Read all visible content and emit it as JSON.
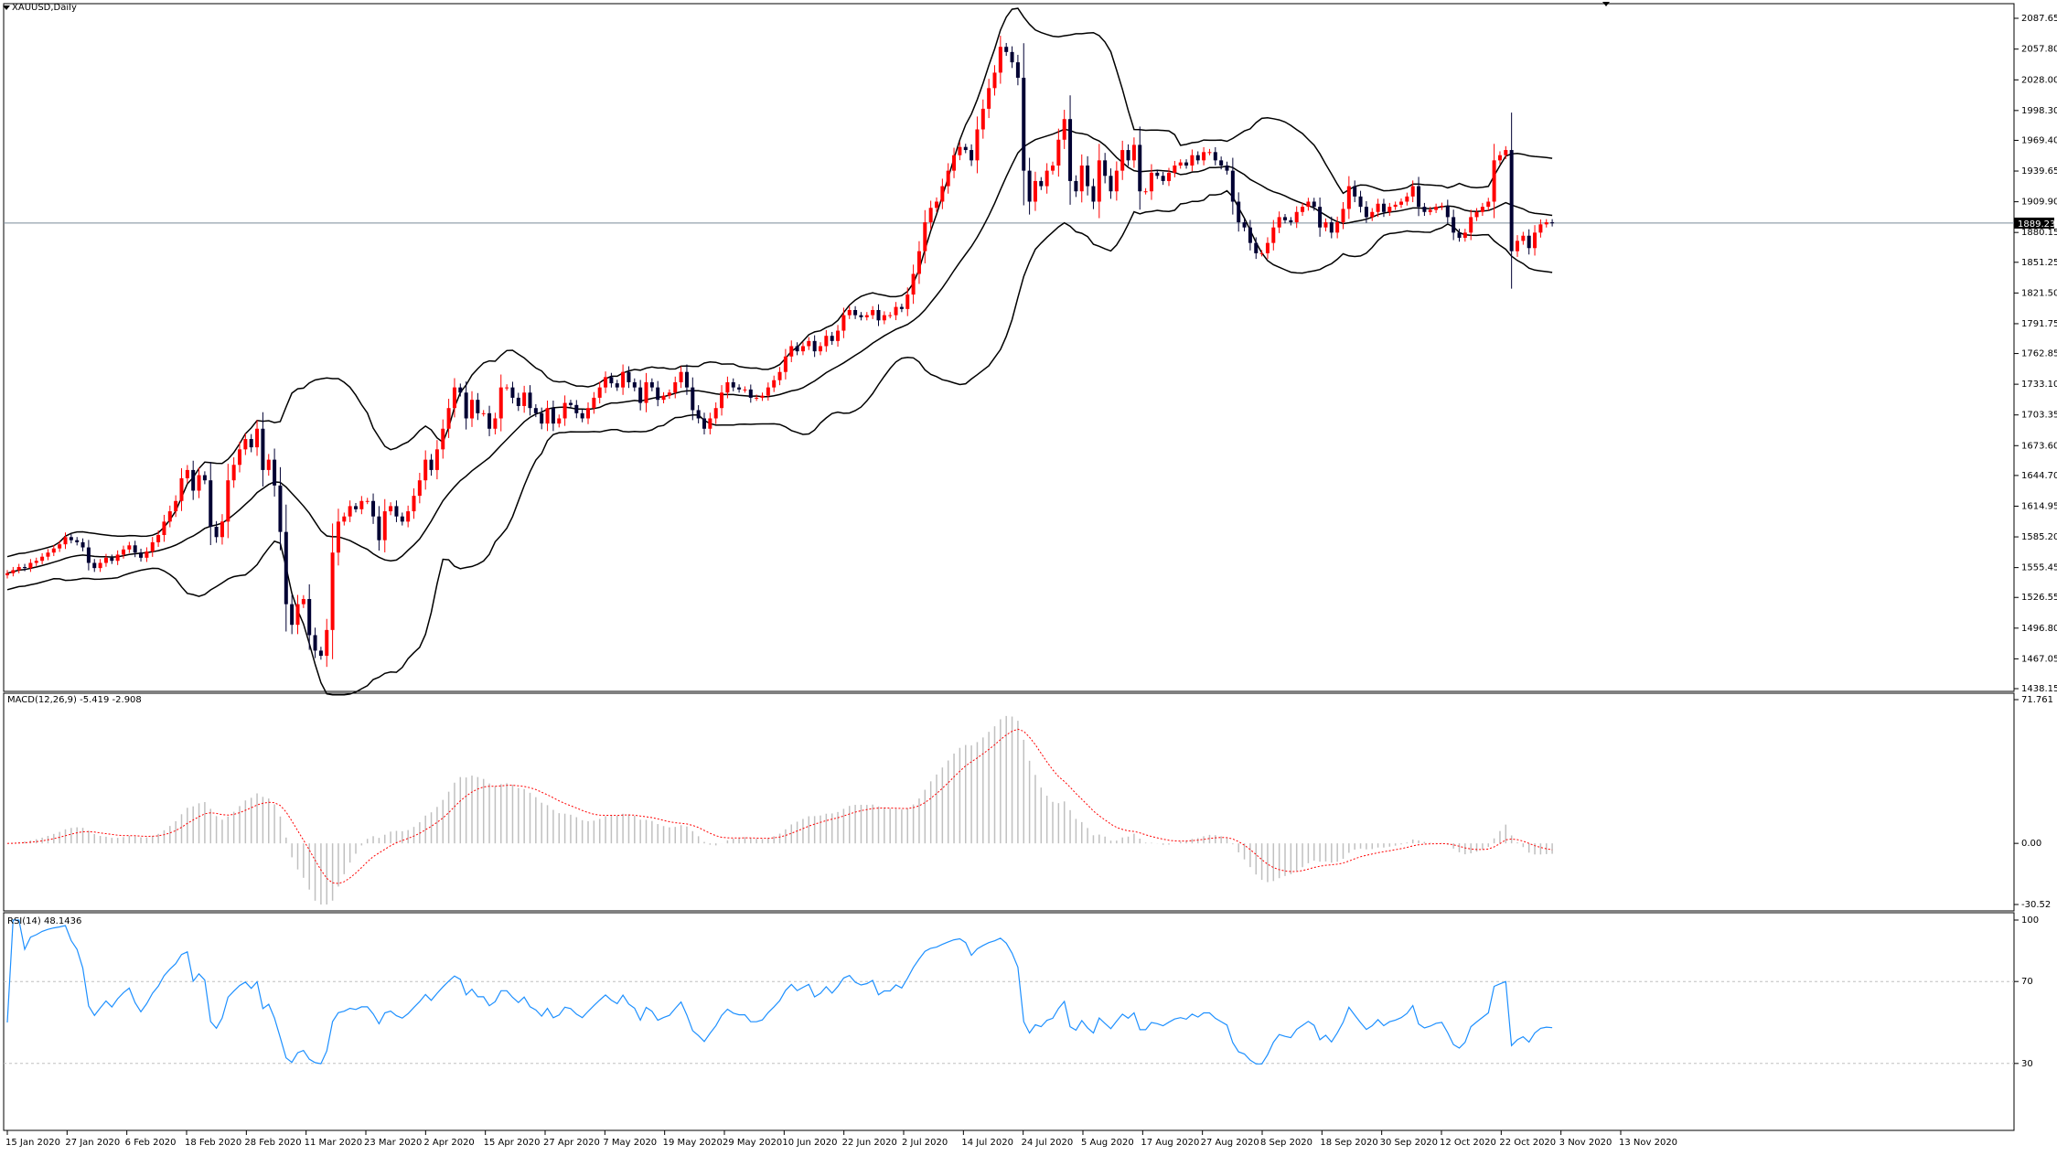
{
  "symbol_title": "XAUUSD,Daily",
  "current_price_label": "1889.23",
  "colors": {
    "up_candle": "#ff0000",
    "down_candle": "#000033",
    "bands": "#000000",
    "macd_hist": "#c0c0c0",
    "macd_signal": "#ff0000",
    "rsi_line": "#1e90ff",
    "grid_dash": "#c0c0c0"
  },
  "chart_data": [
    {
      "type": "candlestick",
      "title": "XAUUSD,Daily",
      "yticks": [
        "2087.65",
        "2057.80",
        "2028.00",
        "1998.30",
        "1969.40",
        "1939.65",
        "1909.90",
        "1880.15",
        "1851.25",
        "1821.50",
        "1791.75",
        "1762.85",
        "1733.10",
        "1703.35",
        "1673.60",
        "1644.70",
        "1614.95",
        "1585.20",
        "1555.45",
        "1526.55",
        "1496.80",
        "1467.05",
        "1438.15"
      ],
      "xticks": [
        "15 Jan 2020",
        "27 Jan 2020",
        "6 Feb 2020",
        "18 Feb 2020",
        "28 Feb 2020",
        "11 Mar 2020",
        "23 Mar 2020",
        "2 Apr 2020",
        "15 Apr 2020",
        "27 Apr 2020",
        "7 May 2020",
        "19 May 2020",
        "29 May 2020",
        "10 Jun 2020",
        "22 Jun 2020",
        "2 Jul 2020",
        "14 Jul 2020",
        "24 Jul 2020",
        "5 Aug 2020",
        "17 Aug 2020",
        "27 Aug 2020",
        "8 Sep 2020",
        "18 Sep 2020",
        "30 Sep 2020",
        "12 Oct 2020",
        "22 Oct 2020",
        "3 Nov 2020",
        "13 Nov 2020"
      ],
      "ylim": [
        1438.15,
        2100
      ],
      "close": [
        1550,
        1553,
        1556,
        1555,
        1560,
        1562,
        1566,
        1570,
        1574,
        1578,
        1585,
        1582,
        1580,
        1575,
        1560,
        1555,
        1560,
        1565,
        1562,
        1568,
        1573,
        1577,
        1570,
        1565,
        1571,
        1580,
        1587,
        1600,
        1610,
        1620,
        1642,
        1650,
        1630,
        1645,
        1640,
        1595,
        1585,
        1600,
        1640,
        1655,
        1670,
        1680,
        1672,
        1690,
        1650,
        1660,
        1635,
        1590,
        1520,
        1500,
        1520,
        1525,
        1490,
        1475,
        1470,
        1495,
        1570,
        1600,
        1605,
        1615,
        1612,
        1620,
        1620,
        1605,
        1582,
        1610,
        1615,
        1605,
        1600,
        1610,
        1625,
        1640,
        1660,
        1650,
        1670,
        1690,
        1710,
        1730,
        1725,
        1700,
        1718,
        1705,
        1705,
        1690,
        1700,
        1730,
        1730,
        1720,
        1712,
        1725,
        1710,
        1705,
        1695,
        1710,
        1695,
        1700,
        1715,
        1713,
        1705,
        1700,
        1710,
        1720,
        1730,
        1740,
        1734,
        1730,
        1745,
        1735,
        1730,
        1715,
        1735,
        1730,
        1718,
        1722,
        1725,
        1735,
        1745,
        1730,
        1708,
        1700,
        1690,
        1700,
        1710,
        1725,
        1735,
        1730,
        1728,
        1728,
        1720,
        1720,
        1722,
        1730,
        1737,
        1745,
        1760,
        1770,
        1765,
        1770,
        1775,
        1765,
        1770,
        1780,
        1775,
        1785,
        1800,
        1805,
        1800,
        1798,
        1800,
        1805,
        1795,
        1800,
        1800,
        1808,
        1806,
        1820,
        1840,
        1862,
        1890,
        1904,
        1910,
        1925,
        1940,
        1955,
        1963,
        1960,
        1950,
        1980,
        2000,
        2020,
        2035,
        2060,
        2055,
        2045,
        2030,
        1940,
        1910,
        1930,
        1925,
        1940,
        1945,
        1970,
        1990,
        1930,
        1920,
        1945,
        1925,
        1910,
        1950,
        1935,
        1920,
        1940,
        1960,
        1950,
        1965,
        1920,
        1920,
        1938,
        1935,
        1930,
        1938,
        1945,
        1948,
        1945,
        1955,
        1950,
        1958,
        1958,
        1950,
        1945,
        1940,
        1910,
        1890,
        1885,
        1870,
        1860,
        1860,
        1870,
        1885,
        1895,
        1892,
        1890,
        1900,
        1905,
        1910,
        1905,
        1885,
        1890,
        1880,
        1890,
        1903,
        1925,
        1915,
        1905,
        1895,
        1900,
        1908,
        1900,
        1905,
        1907,
        1910,
        1915,
        1925,
        1905,
        1900,
        1902,
        1905,
        1906,
        1895,
        1880,
        1875,
        1880,
        1895,
        1900,
        1905,
        1910,
        1950,
        1955,
        1960,
        1862,
        1872,
        1877,
        1865,
        1880,
        1888,
        1890,
        1889
      ]
    },
    {
      "type": "bar",
      "title": "MACD(12,26,9) -5.419 -2.908",
      "yticks": [
        "71.761",
        "0.00",
        "-30.52"
      ],
      "ylim": [
        -30.52,
        71.761
      ]
    },
    {
      "type": "line",
      "title": "RSI(14) 48.1436",
      "yticks": [
        "100",
        "70",
        "30"
      ],
      "ylim": [
        0,
        100
      ],
      "levels": [
        70,
        30
      ]
    }
  ]
}
